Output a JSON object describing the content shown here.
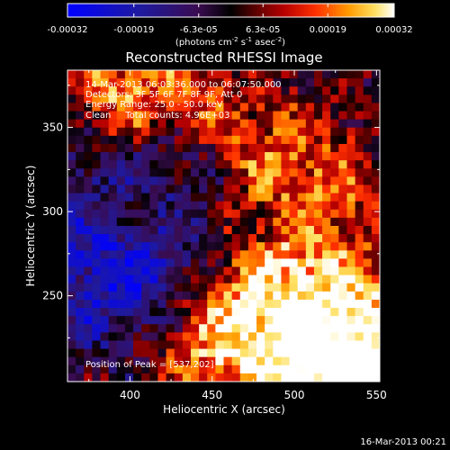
{
  "chart_data": {
    "type": "heatmap",
    "title": "Reconstructed RHESSI Image",
    "xlabel": "Heliocentric X (arcsec)",
    "ylabel": "Heliocentric Y (arcsec)",
    "xlim": [
      362,
      552
    ],
    "ylim": [
      199,
      384
    ],
    "x_ticks": [
      400,
      450,
      500,
      550
    ],
    "y_ticks": [
      250,
      300,
      350
    ],
    "colorbar": {
      "min": -0.00032,
      "max": 0.00032,
      "tick_values": [
        -0.00032,
        -0.00019,
        -6.3e-05,
        6.3e-05,
        0.00019,
        0.00032
      ],
      "tick_labels": [
        "-0.00032",
        "-0.00019",
        "-6.3e-05",
        "6.3e-05",
        "0.00019",
        "0.00032"
      ],
      "units_line1": "(photons cm",
      "units_exp1": "-2",
      "units_mid": " s",
      "units_exp2": "-1",
      "units_mid2": " asec",
      "units_exp3": "-2",
      "units_close": ")"
    },
    "annotations": [
      "14-Mar-2013 06:03:36.000 to 06:07:50.000",
      "Detectors: 3F 5F 6F 7F 8F 9F, Att 0",
      "Energy Range: 25.0 - 50.0 keV",
      "Clean     Total counts: 4.96E+03"
    ],
    "peak_label": "Position of Peak = [537,202]",
    "footer_date": "16-Mar-2013 00:21",
    "colors": {
      "background": "#000000",
      "foreground": "#ffffff"
    }
  }
}
